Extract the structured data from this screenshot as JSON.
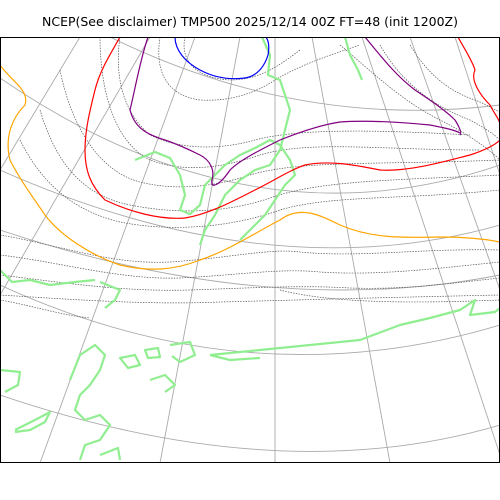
{
  "title": "NCEP(See disclaimer) TMP500 2025/12/14 00Z FT=48 (init 1200Z)",
  "map": {
    "variable": "TMP500",
    "layers": [
      "graticule",
      "coastline",
      "isotherms"
    ],
    "colors": {
      "frame": "#000000",
      "graticule": "#aaaaaa",
      "coastline": "#90ee90",
      "isotherm_thin": "#555555",
      "isotherm_orange": "#ffa500",
      "isotherm_red": "#ff0000",
      "isotherm_purple": "#800080",
      "isotherm_blue": "#0000ff"
    }
  }
}
